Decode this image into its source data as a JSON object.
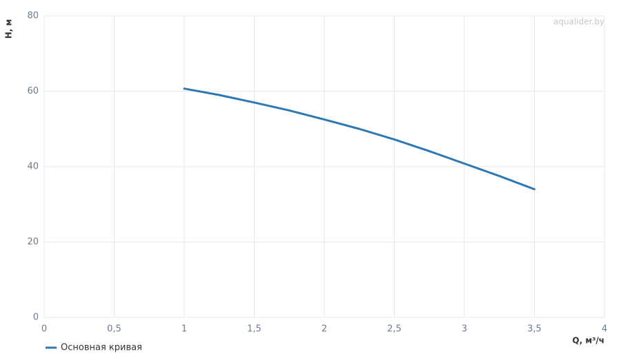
{
  "chart_data": {
    "type": "line",
    "watermark": "aqualider.by",
    "x_label": "Q, м³/ч",
    "y_label": "H, м",
    "x": [
      1,
      1.25,
      1.5,
      1.75,
      2,
      2.25,
      2.5,
      2.75,
      3,
      3.25,
      3.5
    ],
    "series": [
      {
        "name": "Основная кривая",
        "color": "#2b78b4",
        "values": [
          60.7,
          59.0,
          57.0,
          54.9,
          52.5,
          50.0,
          47.2,
          44.1,
          40.8,
          37.5,
          34.0
        ]
      }
    ],
    "xlim": [
      0,
      4
    ],
    "xticks": [
      0,
      {
        "value": 0.5,
        "label": "0,5"
      },
      1,
      {
        "value": 1.5,
        "label": "1,5"
      },
      2,
      {
        "value": 2.5,
        "label": "2,5"
      },
      3,
      {
        "value": 3.5,
        "label": "3,5"
      },
      4
    ],
    "ylim": [
      0,
      80
    ],
    "yticks": [
      0,
      20,
      40,
      60,
      80
    ],
    "grid": true,
    "legend": "bottom-left"
  }
}
